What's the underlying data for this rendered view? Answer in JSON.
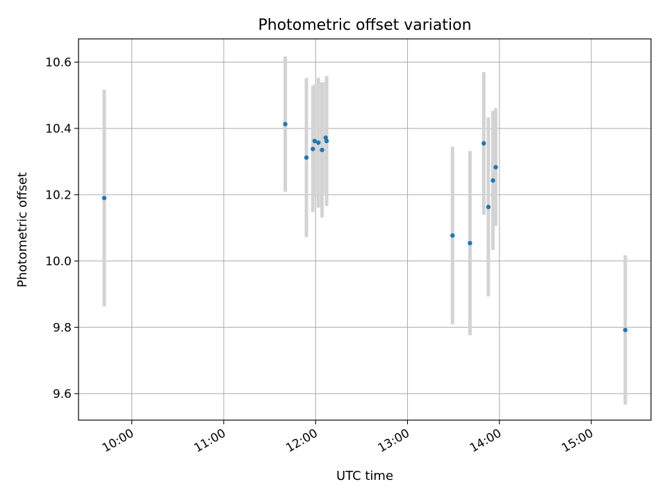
{
  "chart_data": {
    "type": "scatter",
    "title": "Photometric offset variation",
    "xlabel": "UTC time",
    "ylabel": "Photometric offset",
    "x_tick_labels": [
      "10:00",
      "11:00",
      "12:00",
      "13:00",
      "14:00",
      "15:00"
    ],
    "x_tick_hours": [
      10,
      11,
      12,
      13,
      14,
      15
    ],
    "y_tick_labels": [
      "9.6",
      "9.8",
      "10.0",
      "10.2",
      "10.4",
      "10.6"
    ],
    "y_ticks": [
      9.6,
      9.8,
      10.0,
      10.2,
      10.4,
      10.6
    ],
    "xlim_hours": [
      9.42,
      15.65
    ],
    "ylim": [
      9.52,
      10.67
    ],
    "grid": true,
    "x_tick_rotation_deg": 30,
    "colors": {
      "point": "#1f77b4",
      "errorbar": "#d3d3d3",
      "grid": "#b0b0b0",
      "axis": "#000000"
    },
    "series": [
      {
        "x_hours": [
          9.7,
          11.67,
          11.9,
          11.97,
          11.99,
          12.03,
          12.07,
          12.11,
          12.12,
          13.49,
          13.68,
          13.83,
          13.88,
          13.93,
          13.96,
          15.37
        ],
        "y": [
          10.19,
          10.413,
          10.312,
          10.338,
          10.362,
          10.357,
          10.335,
          10.372,
          10.362,
          10.077,
          10.054,
          10.355,
          10.163,
          10.243,
          10.283,
          9.792
        ],
        "err": [
          0.327,
          0.204,
          0.24,
          0.19,
          0.17,
          0.196,
          0.204,
          0.168,
          0.196,
          0.268,
          0.278,
          0.215,
          0.27,
          0.21,
          0.178,
          0.225
        ]
      }
    ]
  }
}
